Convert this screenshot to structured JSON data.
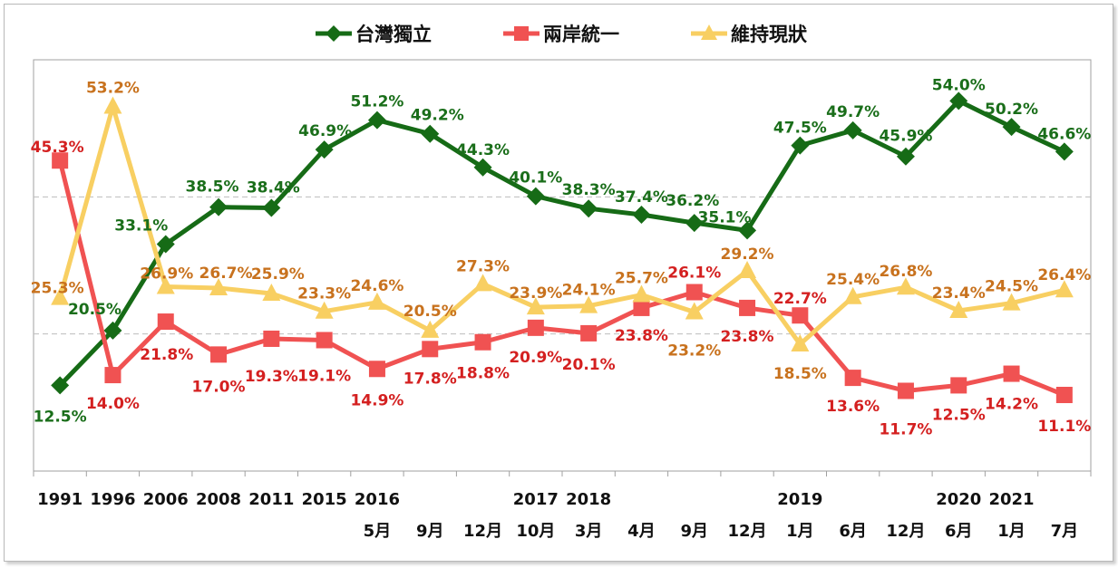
{
  "chart_data": {
    "type": "line",
    "title": "",
    "xlabel": "",
    "ylabel": "",
    "ylim": [
      0,
      60
    ],
    "grid": "horizontal dashed at 20 and 40",
    "legend": "top-center",
    "categories": [
      {
        "year": "1991",
        "month": ""
      },
      {
        "year": "1996",
        "month": ""
      },
      {
        "year": "2006",
        "month": ""
      },
      {
        "year": "2008",
        "month": ""
      },
      {
        "year": "2011",
        "month": ""
      },
      {
        "year": "2015",
        "month": ""
      },
      {
        "year": "2016",
        "month": "5月"
      },
      {
        "year": "",
        "month": "9月"
      },
      {
        "year": "",
        "month": "12月"
      },
      {
        "year": "2017",
        "month": "10月"
      },
      {
        "year": "2018",
        "month": "3月"
      },
      {
        "year": "",
        "month": "4月"
      },
      {
        "year": "",
        "month": "9月"
      },
      {
        "year": "",
        "month": "12月"
      },
      {
        "year": "2019",
        "month": "1月"
      },
      {
        "year": "",
        "month": "6月"
      },
      {
        "year": "",
        "month": "12月"
      },
      {
        "year": "2020",
        "month": "6月"
      },
      {
        "year": "2021",
        "month": "1月"
      },
      {
        "year": "",
        "month": "7月"
      }
    ],
    "series": [
      {
        "name": "台灣獨立",
        "color": "#166b16",
        "label_color": "#1a6e1a",
        "marker": "diamond",
        "values": [
          12.5,
          20.5,
          33.1,
          38.5,
          38.4,
          46.9,
          51.2,
          49.2,
          44.3,
          40.1,
          38.3,
          37.4,
          36.2,
          35.1,
          47.5,
          49.7,
          45.9,
          54.0,
          50.2,
          46.6
        ]
      },
      {
        "name": "兩岸統一",
        "color": "#f05252",
        "label_color": "#d42020",
        "marker": "square",
        "values": [
          45.3,
          14.0,
          21.8,
          17.0,
          19.3,
          19.1,
          14.9,
          17.8,
          18.8,
          20.9,
          20.1,
          23.8,
          26.1,
          23.8,
          22.7,
          13.6,
          11.7,
          12.5,
          14.2,
          11.1
        ]
      },
      {
        "name": "維持現狀",
        "color": "#f8cf62",
        "label_color": "#c8721e",
        "marker": "triangle",
        "values": [
          25.3,
          53.2,
          26.9,
          26.7,
          25.9,
          23.3,
          24.6,
          20.5,
          27.3,
          23.9,
          24.1,
          25.7,
          23.2,
          29.2,
          18.5,
          25.4,
          26.8,
          23.4,
          24.5,
          26.4
        ]
      }
    ],
    "value_suffix": "%"
  }
}
